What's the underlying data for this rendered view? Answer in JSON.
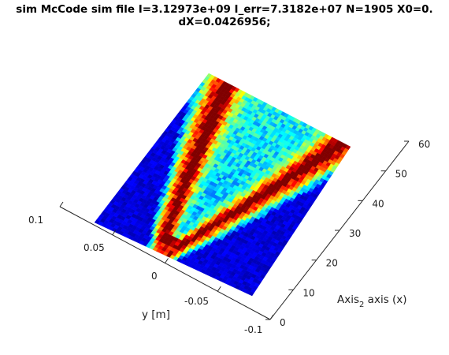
{
  "chart_data": {
    "type": "heatmap",
    "title_lines": [
      "sim McCode sim file I=3.12973e+09 I_err=7.3182e+07 N=1905 X0=0.",
      "dX=0.0426956;"
    ],
    "ylabel": "y [m]",
    "xlabel_main": "Axis",
    "xlabel_sub": "2",
    "xlabel_rest": " axis (x)",
    "y_ticks": [
      "0.1",
      "0.05",
      "0",
      "-0.05",
      "-0.1"
    ],
    "x_ticks": [
      "0",
      "10",
      "20",
      "30",
      "40",
      "50",
      "60"
    ],
    "ylim": [
      -0.1,
      0.1
    ],
    "xlim": [
      0,
      60
    ],
    "colormap": "jet",
    "description_of_surface": "V-shaped intensity branching from apex near (y=0, x=0)"
  }
}
